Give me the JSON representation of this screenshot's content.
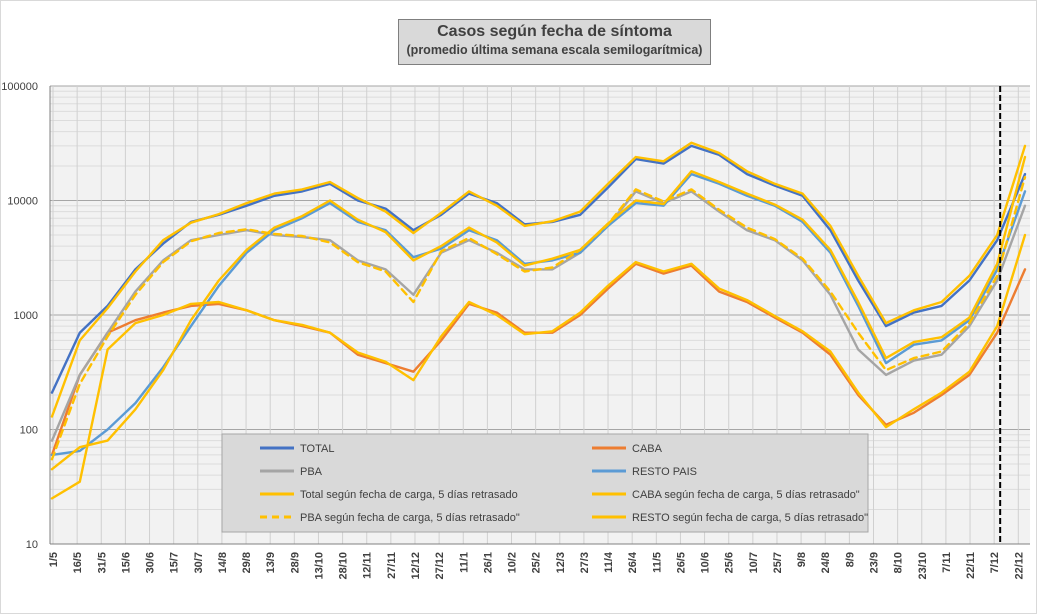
{
  "chart_data": {
    "type": "line",
    "title": "Casos según fecha de síntoma",
    "subtitle": "(promedio última semana escala semilogarítmica)",
    "xlabel": "",
    "ylabel": "",
    "y_scale": "log",
    "ylim": [
      10,
      100000
    ],
    "y_ticks": [
      "10",
      "100",
      "1000",
      "10000",
      "100000"
    ],
    "grid": true,
    "legend_position": "bottom-center",
    "x_tick_labels": [
      "1/5",
      "16/5",
      "31/5",
      "15/6",
      "30/6",
      "15/7",
      "30/7",
      "14/8",
      "29/8",
      "13/9",
      "28/9",
      "13/10",
      "28/10",
      "12/11",
      "27/11",
      "12/12",
      "27/12",
      "11/1",
      "26/1",
      "10/2",
      "25/2",
      "12/3",
      "27/3",
      "11/4",
      "26/4",
      "11/5",
      "26/5",
      "10/6",
      "25/6",
      "10/7",
      "25/7",
      "9/8",
      "24/8",
      "8/9",
      "23/9",
      "8/10",
      "23/10",
      "7/11",
      "22/11",
      "7/12",
      "22/12"
    ],
    "vertical_marker": {
      "after_tick": "7/12",
      "style": "dashed",
      "color": "#000000"
    },
    "series": [
      {
        "name": "TOTAL",
        "color": "#4472c4",
        "dash": false,
        "values": [
          210,
          700,
          1200,
          2500,
          4200,
          6500,
          7500,
          9000,
          11000,
          12000,
          14000,
          10000,
          8500,
          5500,
          7500,
          11500,
          9500,
          6200,
          6500,
          7500,
          13000,
          23000,
          21000,
          30000,
          25000,
          17000,
          13500,
          11000,
          5500,
          2000,
          800,
          1050,
          1200,
          2000,
          4500,
          17000
        ]
      },
      {
        "name": "CABA",
        "color": "#ed7d31",
        "dash": false,
        "values": [
          60,
          300,
          700,
          900,
          1050,
          1200,
          1250,
          1100,
          900,
          800,
          700,
          450,
          380,
          320,
          600,
          1250,
          1050,
          700,
          700,
          1000,
          1700,
          2800,
          2300,
          2700,
          1600,
          1300,
          950,
          700,
          450,
          200,
          110,
          140,
          200,
          300,
          700,
          2500
        ]
      },
      {
        "name": "PBA",
        "color": "#a5a5a5",
        "dash": false,
        "values": [
          80,
          300,
          700,
          1600,
          3000,
          4500,
          5000,
          5500,
          5000,
          4800,
          4500,
          3000,
          2500,
          1500,
          3500,
          4500,
          3500,
          2500,
          2500,
          3500,
          6000,
          12000,
          9500,
          12000,
          8000,
          5500,
          4500,
          3000,
          1500,
          500,
          300,
          400,
          450,
          800,
          2000,
          9000
        ]
      },
      {
        "name": "RESTO PAIS",
        "color": "#5b9bd5",
        "dash": false,
        "values": [
          60,
          65,
          100,
          170,
          350,
          800,
          1800,
          3500,
          5500,
          7000,
          9500,
          6500,
          5500,
          3200,
          3800,
          5500,
          4500,
          2800,
          3000,
          3500,
          6000,
          9500,
          9000,
          17000,
          14000,
          11000,
          9000,
          6500,
          3500,
          1200,
          380,
          550,
          600,
          900,
          2500,
          12000
        ]
      },
      {
        "name": "Total según fecha de carga, 5 días retrasado",
        "color": "#ffc000",
        "dash": false,
        "values": [
          130,
          600,
          1150,
          2400,
          4500,
          6400,
          7600,
          9500,
          11500,
          12500,
          14500,
          10500,
          8000,
          5200,
          7800,
          12000,
          9000,
          6000,
          6600,
          8000,
          14000,
          24000,
          22000,
          32000,
          26000,
          18000,
          14000,
          11500,
          6000,
          2200,
          850,
          1100,
          1300,
          2200,
          5000,
          30000
        ]
      },
      {
        "name": "CABA según fecha de carga, 5 días retrasado\"",
        "color": "#ffc000",
        "dash": false,
        "values": [
          25,
          35,
          500,
          850,
          1000,
          1250,
          1300,
          1100,
          900,
          820,
          700,
          470,
          390,
          270,
          650,
          1300,
          1000,
          680,
          720,
          1050,
          1800,
          2900,
          2400,
          2800,
          1700,
          1350,
          980,
          720,
          480,
          210,
          105,
          150,
          210,
          320,
          800,
          5000
        ]
      },
      {
        "name": "PBA según fecha de carga, 5 días retrasado\"",
        "color": "#ffc000",
        "dash": true,
        "values": [
          55,
          250,
          650,
          1500,
          2900,
          4400,
          5200,
          5600,
          5100,
          4900,
          4300,
          2900,
          2400,
          1300,
          3600,
          4700,
          3400,
          2400,
          2600,
          3700,
          6200,
          12500,
          9800,
          12500,
          8300,
          5800,
          4600,
          3100,
          1600,
          700,
          330,
          420,
          480,
          850,
          2200,
          16000
        ]
      },
      {
        "name": "RESTO según fecha de carga, 5 días retrasado\"",
        "color": "#ffc000",
        "dash": false,
        "values": [
          45,
          70,
          80,
          150,
          330,
          900,
          2000,
          3700,
          5800,
          7300,
          10000,
          6800,
          5300,
          3000,
          4000,
          5800,
          4300,
          2700,
          3100,
          3700,
          6300,
          10000,
          9300,
          18000,
          14500,
          11500,
          9200,
          6800,
          3700,
          1300,
          420,
          580,
          640,
          950,
          2800,
          24000
        ]
      }
    ]
  }
}
